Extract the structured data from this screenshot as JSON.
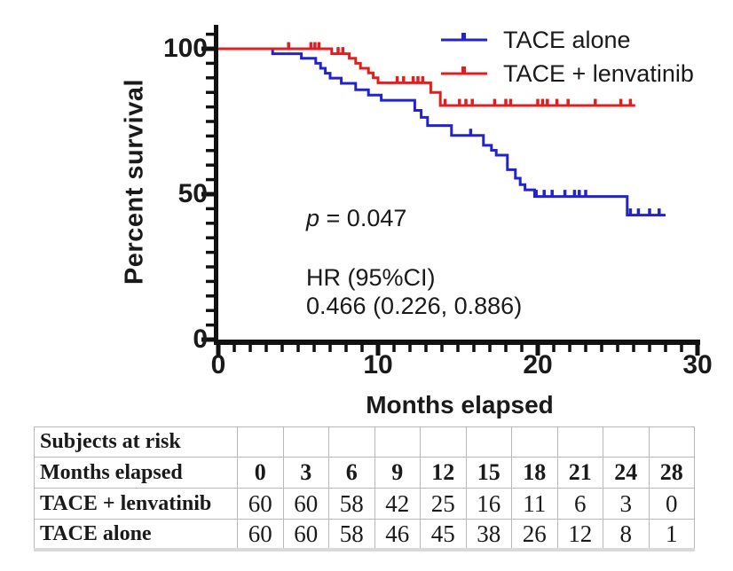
{
  "chart_data": {
    "type": "line",
    "subtype": "kaplan-meier-step",
    "title": "",
    "xlabel": "Months elapsed",
    "ylabel": "Percent survival",
    "xlim": [
      0,
      30
    ],
    "ylim": [
      0,
      100
    ],
    "x_major_ticks": [
      0,
      10,
      20,
      30
    ],
    "x_minor_step": 1,
    "y_major_ticks": [
      0,
      50,
      100
    ],
    "y_minor_step": 5,
    "grid": "off",
    "legend_position": "top-right",
    "axis_color": "#111111",
    "series": [
      {
        "name": "TACE alone",
        "color": "#2323cc",
        "steps": [
          [
            0,
            100
          ],
          [
            3.4,
            98.3
          ],
          [
            5.2,
            96.7
          ],
          [
            6.1,
            95.0
          ],
          [
            6.4,
            93.3
          ],
          [
            6.7,
            91.6
          ],
          [
            7.0,
            89.9
          ],
          [
            7.7,
            88.1
          ],
          [
            8.6,
            85.9
          ],
          [
            9.4,
            84.1
          ],
          [
            10.2,
            82.3
          ],
          [
            12.3,
            78.8
          ],
          [
            12.7,
            76.4
          ],
          [
            13.1,
            73.6
          ],
          [
            14.6,
            70.2
          ],
          [
            16.6,
            66.8
          ],
          [
            17.1,
            65.1
          ],
          [
            17.4,
            63.4
          ],
          [
            18.1,
            58.4
          ],
          [
            18.6,
            55.5
          ],
          [
            18.9,
            53.3
          ],
          [
            19.2,
            51.5
          ],
          [
            19.8,
            49.2
          ],
          [
            25.6,
            42.8
          ]
        ],
        "end_x": 28.0,
        "censors": [
          [
            15.8,
            70.2
          ],
          [
            19.9,
            49.2
          ],
          [
            20.4,
            49.2
          ],
          [
            20.9,
            49.2
          ],
          [
            21.7,
            49.2
          ],
          [
            22.3,
            49.2
          ],
          [
            22.6,
            49.2
          ],
          [
            23.0,
            49.2
          ],
          [
            25.8,
            42.8
          ],
          [
            26.3,
            42.8
          ],
          [
            27.0,
            42.8
          ],
          [
            27.6,
            42.8
          ]
        ]
      },
      {
        "name": "TACE + lenvatinib",
        "color": "#e02020",
        "steps": [
          [
            0,
            100
          ],
          [
            7.1,
            98.3
          ],
          [
            8.2,
            96.7
          ],
          [
            8.6,
            95.0
          ],
          [
            8.9,
            93.3
          ],
          [
            9.4,
            91.7
          ],
          [
            9.7,
            90.0
          ],
          [
            10.0,
            88.3
          ],
          [
            13.3,
            85.0
          ],
          [
            13.9,
            80.5
          ]
        ],
        "end_x": 26.1,
        "censors": [
          [
            4.4,
            100
          ],
          [
            5.8,
            100
          ],
          [
            6.05,
            100
          ],
          [
            6.3,
            100
          ],
          [
            7.5,
            98.3
          ],
          [
            7.8,
            98.3
          ],
          [
            11.2,
            88.3
          ],
          [
            11.6,
            88.3
          ],
          [
            12.2,
            88.3
          ],
          [
            12.5,
            88.3
          ],
          [
            12.8,
            88.3
          ],
          [
            14.2,
            80.5
          ],
          [
            15.1,
            80.5
          ],
          [
            15.5,
            80.5
          ],
          [
            15.9,
            80.5
          ],
          [
            17.3,
            80.5
          ],
          [
            18.0,
            80.5
          ],
          [
            18.3,
            80.5
          ],
          [
            20.0,
            80.5
          ],
          [
            20.3,
            80.5
          ],
          [
            20.6,
            80.5
          ],
          [
            21.2,
            80.5
          ],
          [
            21.9,
            80.5
          ],
          [
            23.6,
            80.5
          ],
          [
            25.2,
            80.5
          ],
          [
            25.8,
            80.5
          ]
        ]
      }
    ],
    "annotations": {
      "p_italic": "p",
      "p_rest": " = 0.047",
      "hr_line1": "HR (95%CI)",
      "hr_line2": "0.466 (0.226, 0.886)"
    }
  },
  "risk_table": {
    "title": "Subjects at risk",
    "header_label": "Months elapsed",
    "months": [
      "0",
      "3",
      "6",
      "9",
      "12",
      "15",
      "18",
      "21",
      "24",
      "28"
    ],
    "rows": [
      {
        "label": "TACE + lenvatinib",
        "values": [
          "60",
          "60",
          "58",
          "42",
          "25",
          "16",
          "11",
          "6",
          "3",
          "0"
        ]
      },
      {
        "label": "TACE alone",
        "values": [
          "60",
          "60",
          "58",
          "46",
          "45",
          "38",
          "26",
          "12",
          "8",
          "1"
        ]
      }
    ]
  }
}
